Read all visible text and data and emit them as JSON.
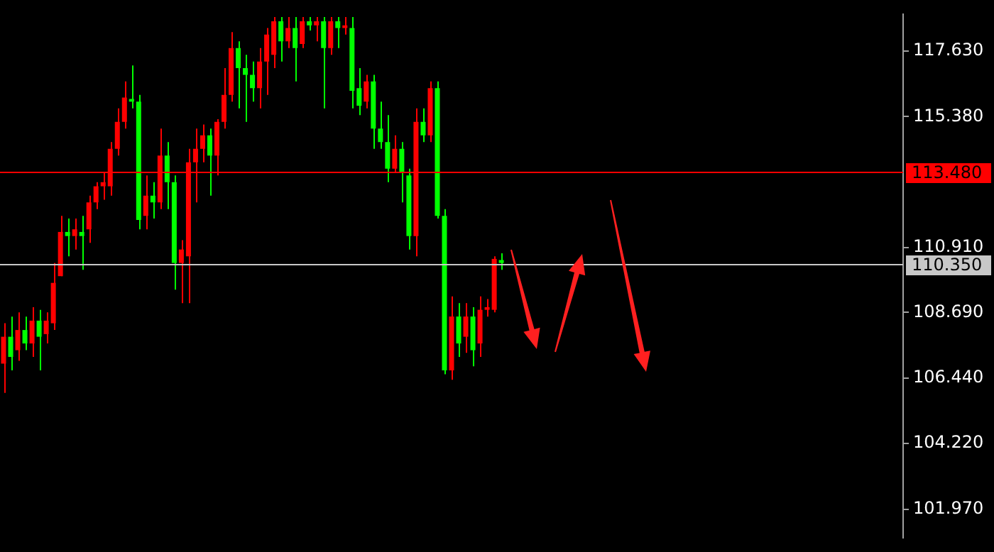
{
  "chart_data": {
    "type": "candlestick",
    "categories": [
      null,
      null,
      null,
      null,
      null,
      null,
      null,
      null,
      null,
      null,
      null,
      null,
      null,
      null,
      null,
      null,
      null,
      null,
      null,
      null,
      null,
      null,
      null,
      null,
      null,
      null,
      null,
      null,
      null,
      null,
      null,
      null,
      null,
      null,
      null,
      null,
      null,
      null,
      null,
      null,
      null,
      null,
      null,
      null,
      null,
      null,
      null,
      null,
      null,
      null,
      null,
      null,
      null,
      null,
      null,
      null,
      null,
      null,
      null,
      null,
      null,
      null,
      null,
      null,
      null,
      null,
      null,
      null,
      null,
      null,
      null,
      null,
      null,
      null,
      null,
      null,
      null,
      null,
      null,
      null,
      null,
      null,
      null,
      null,
      null,
      null,
      null,
      null,
      null,
      null,
      null,
      null,
      null,
      null,
      null,
      null,
      null,
      null,
      null,
      null,
      null,
      null,
      null,
      null,
      null,
      null,
      null,
      null,
      null,
      null,
      null,
      null,
      null,
      null,
      null,
      null,
      null,
      null,
      null,
      null,
      null,
      null,
      null,
      null,
      null,
      null,
      null
    ],
    "ohlc": [
      [
        106.94,
        108.32,
        105.94,
        107.86
      ],
      [
        107.86,
        108.55,
        106.71,
        107.17
      ],
      [
        107.4,
        108.69,
        107.04,
        108.09
      ],
      [
        108.09,
        108.55,
        107.4,
        107.63
      ],
      [
        107.63,
        108.87,
        107.17,
        108.41
      ],
      [
        108.41,
        108.78,
        106.71,
        107.86
      ],
      [
        107.95,
        108.69,
        107.63,
        108.41
      ],
      [
        108.32,
        110.38,
        108.09,
        109.7
      ],
      [
        109.93,
        111.99,
        109.93,
        111.44
      ],
      [
        111.44,
        111.9,
        110.61,
        111.3
      ],
      [
        111.3,
        111.9,
        110.84,
        111.53
      ],
      [
        111.44,
        111.99,
        110.15,
        111.3
      ],
      [
        111.53,
        112.68,
        111.07,
        112.45
      ],
      [
        112.45,
        113.14,
        112.22,
        113.0
      ],
      [
        113.0,
        113.46,
        112.54,
        113.14
      ],
      [
        113.0,
        114.51,
        112.68,
        114.28
      ],
      [
        114.28,
        115.66,
        114.05,
        115.2
      ],
      [
        115.2,
        116.58,
        114.97,
        116.03
      ],
      [
        115.98,
        117.13,
        115.66,
        115.89
      ],
      [
        115.89,
        116.12,
        111.53,
        111.85
      ],
      [
        111.99,
        113.37,
        111.53,
        112.68
      ],
      [
        112.68,
        113.14,
        111.9,
        112.45
      ],
      [
        112.45,
        114.97,
        112.22,
        114.05
      ],
      [
        114.05,
        114.51,
        112.22,
        113.14
      ],
      [
        113.14,
        113.37,
        109.47,
        110.38
      ],
      [
        110.38,
        111.16,
        109.01,
        110.84
      ],
      [
        110.61,
        114.28,
        109.01,
        113.82
      ],
      [
        113.82,
        114.97,
        112.45,
        114.28
      ],
      [
        114.28,
        115.11,
        113.82,
        114.74
      ],
      [
        114.74,
        114.97,
        112.68,
        114.05
      ],
      [
        114.05,
        115.29,
        113.37,
        115.2
      ],
      [
        115.2,
        117.04,
        114.97,
        116.12
      ],
      [
        116.12,
        118.27,
        115.89,
        117.72
      ],
      [
        117.72,
        117.95,
        115.66,
        117.04
      ],
      [
        117.04,
        117.49,
        115.2,
        116.81
      ],
      [
        116.81,
        117.26,
        115.89,
        116.35
      ],
      [
        116.35,
        117.72,
        115.66,
        117.26
      ],
      [
        117.26,
        118.41,
        116.12,
        118.18
      ],
      [
        117.49,
        118.78,
        117.04,
        118.64
      ],
      [
        118.64,
        118.78,
        117.26,
        117.95
      ],
      [
        117.95,
        118.78,
        117.72,
        118.41
      ],
      [
        118.41,
        118.78,
        116.58,
        117.72
      ],
      [
        117.86,
        118.78,
        117.72,
        118.64
      ],
      [
        118.64,
        118.78,
        118.32,
        118.5
      ],
      [
        118.5,
        118.78,
        117.95,
        118.64
      ],
      [
        118.64,
        118.78,
        115.66,
        117.72
      ],
      [
        117.72,
        118.78,
        117.49,
        118.64
      ],
      [
        118.64,
        118.78,
        117.72,
        118.41
      ],
      [
        118.41,
        118.78,
        118.18,
        118.5
      ],
      [
        118.41,
        118.78,
        115.66,
        116.26
      ],
      [
        116.35,
        117.04,
        115.43,
        115.75
      ],
      [
        115.89,
        116.81,
        115.66,
        116.58
      ],
      [
        116.58,
        116.81,
        114.28,
        114.97
      ],
      [
        114.97,
        115.89,
        114.28,
        114.51
      ],
      [
        114.51,
        115.43,
        113.14,
        113.6
      ],
      [
        113.6,
        114.74,
        113.46,
        114.28
      ],
      [
        114.28,
        114.51,
        112.45,
        113.46
      ],
      [
        113.37,
        113.6,
        110.84,
        111.3
      ],
      [
        111.3,
        115.66,
        110.61,
        115.2
      ],
      [
        115.2,
        115.66,
        114.51,
        114.74
      ],
      [
        114.74,
        116.58,
        114.51,
        116.35
      ],
      [
        116.35,
        116.58,
        111.9,
        111.99
      ],
      [
        111.99,
        112.22,
        106.58,
        106.71
      ],
      [
        106.71,
        109.24,
        106.39,
        108.55
      ],
      [
        108.55,
        109.01,
        107.17,
        107.63
      ],
      [
        107.86,
        109.01,
        107.31,
        108.55
      ],
      [
        108.55,
        108.87,
        106.85,
        107.4
      ],
      [
        107.63,
        109.24,
        107.17,
        108.78
      ],
      [
        108.78,
        109.15,
        108.55,
        108.87
      ],
      [
        108.78,
        110.61,
        108.69,
        110.52
      ],
      [
        110.48,
        110.71,
        110.15,
        110.38
      ],
      null,
      null,
      null,
      null,
      null,
      null,
      null,
      null,
      null,
      null,
      null,
      null,
      null,
      null,
      null,
      null,
      null,
      null,
      null,
      null,
      null,
      null,
      null,
      null,
      null,
      null,
      null,
      null,
      null,
      null,
      null,
      null,
      null,
      null,
      null,
      null,
      null,
      null,
      null,
      null,
      null,
      null,
      null,
      null,
      null,
      null,
      null,
      null,
      null,
      null,
      null,
      null,
      null,
      null,
      null,
      null
    ],
    "colors": [
      "#ff0000",
      "#00ff00",
      "#ff0000",
      "#00ff00",
      "#ff0000",
      "#00ff00",
      "#ff0000",
      "#ff0000",
      "#ff0000",
      "#00ff00",
      "#ff0000",
      "#00ff00",
      "#ff0000",
      "#ff0000",
      "#ff0000",
      "#ff0000",
      "#ff0000",
      "#ff0000",
      "#00ff00",
      "#00ff00",
      "#ff0000",
      "#00ff00",
      "#ff0000",
      "#00ff00",
      "#00ff00",
      "#ff0000",
      "#ff0000",
      "#ff0000",
      "#ff0000",
      "#00ff00",
      "#ff0000",
      "#ff0000",
      "#ff0000",
      "#00ff00",
      "#00ff00",
      "#00ff00",
      "#ff0000",
      "#ff0000",
      "#ff0000",
      "#00ff00",
      "#ff0000",
      "#00ff00",
      "#ff0000",
      "#00ff00",
      "#ff0000",
      "#00ff00",
      "#ff0000",
      "#00ff00",
      "#ff0000",
      "#00ff00",
      "#00ff00",
      "#ff0000",
      "#00ff00",
      "#00ff00",
      "#00ff00",
      "#ff0000",
      "#00ff00",
      "#00ff00",
      "#ff0000",
      "#00ff00",
      "#ff0000",
      "#00ff00",
      "#00ff00",
      "#ff0000",
      "#00ff00",
      "#ff0000",
      "#00ff00",
      "#ff0000",
      "#ff0000",
      "#ff0000",
      "#00ff00",
      null,
      null,
      null,
      null,
      null,
      null,
      null,
      null,
      null,
      null,
      null,
      null,
      null,
      null,
      null,
      null,
      null,
      null,
      null,
      null,
      null,
      null,
      null,
      null,
      null,
      null,
      null,
      null,
      null,
      null,
      null,
      null,
      null,
      null,
      null,
      null,
      null,
      null,
      null,
      null,
      null,
      null,
      null,
      null,
      null,
      null,
      null,
      null,
      null,
      null,
      null,
      null,
      null,
      null,
      null,
      null
    ],
    "ylim": [
      101.0,
      118.87
    ],
    "yticks": [
      {
        "value": 101.97,
        "label": "101.970"
      },
      {
        "value": 104.22,
        "label": "104.220"
      },
      {
        "value": 106.44,
        "label": "106.440"
      },
      {
        "value": 108.69,
        "label": "108.690"
      },
      {
        "value": 110.91,
        "label": "110.910"
      },
      {
        "value": 115.38,
        "label": "115.380"
      },
      {
        "value": 117.63,
        "label": "117.630"
      }
    ],
    "ref_lines": [
      {
        "axis": "y",
        "value": 113.48,
        "label": "113.480",
        "color": "#ff0000"
      },
      {
        "axis": "y",
        "value": 110.35,
        "label": "110.350",
        "color": "#c8c8c8"
      }
    ],
    "tick_labels": "y",
    "grid": false,
    "legend": false
  }
}
